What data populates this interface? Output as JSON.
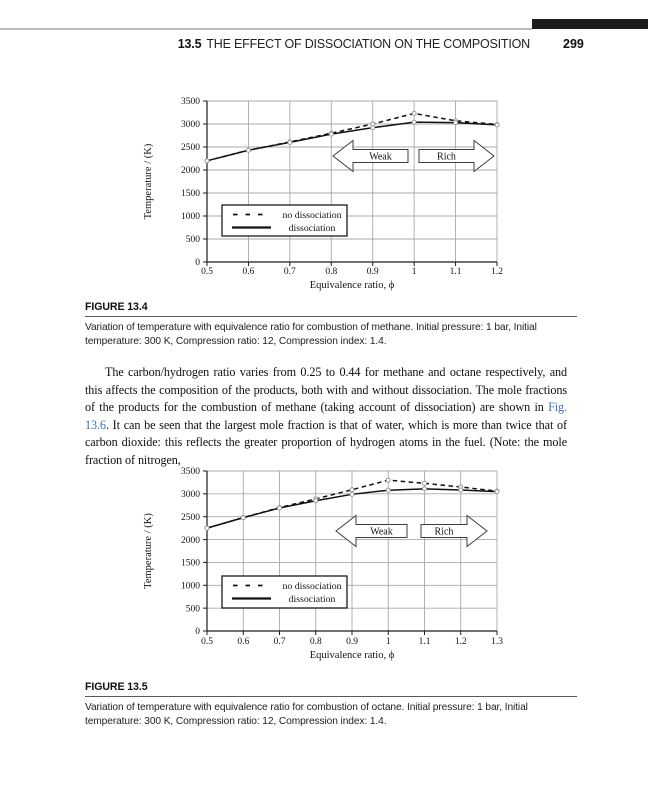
{
  "running_head": {
    "section_number": "13.5",
    "title": "THE EFFECT OF DISSOCIATION ON THE COMPOSITION",
    "page_number": "299"
  },
  "figures": [
    {
      "label": "FIGURE 13.4",
      "caption": "Variation of temperature with equivalence ratio for combustion of methane. Initial pressure: 1 bar, Initial temperature: 300 K, Compression ratio: 12, Compression index: 1.4."
    },
    {
      "label": "FIGURE 13.5",
      "caption": "Variation of temperature with equivalence ratio for combustion of octane. Initial pressure: 1 bar, Initial temperature: 300 K, Compression ratio: 12, Compression index: 1.4."
    }
  ],
  "body": {
    "before_link": "The carbon/hydrogen ratio varies from 0.25 to 0.44 for methane and octane respectively, and this affects the composition of the products, both with and without dissociation. The mole fractions of the products for the combustion of methane (taking account of dissociation) are shown in ",
    "link_text": "Fig. 13.6",
    "after_link": ". It can be seen that the largest mole fraction is that of water, which is more than twice that of carbon dioxide: this reflects the greater proportion of hydrogen atoms in the fuel. (Note: the mole fraction of nitrogen,"
  },
  "chart_data": [
    {
      "type": "line",
      "title": "",
      "xlabel": "Equivalence ratio, ϕ",
      "ylabel": "Temperature / (K)",
      "xlim": [
        0.5,
        1.2
      ],
      "ylim": [
        0,
        3500
      ],
      "xtick_step": 0.1,
      "ytick_step": 500,
      "xtick_labels": [
        "0.5",
        "0.6",
        "0.7",
        "0.8",
        "0.9",
        "1",
        "1.1",
        "1.2"
      ],
      "grid": true,
      "legend_position": "inside-lower-left",
      "x": [
        0.5,
        0.6,
        0.7,
        0.8,
        0.9,
        1.0,
        1.1,
        1.2
      ],
      "series": [
        {
          "name": "no dissociation",
          "style": "dashed",
          "values": [
            2200,
            2430,
            2610,
            2800,
            3000,
            3230,
            3070,
            2990
          ]
        },
        {
          "name": "dissociation",
          "style": "solid",
          "values": [
            2200,
            2430,
            2600,
            2780,
            2920,
            3040,
            3030,
            2980
          ]
        }
      ],
      "annotations": [
        {
          "label": "Weak",
          "direction": "left"
        },
        {
          "label": "Rich",
          "direction": "right"
        }
      ]
    },
    {
      "type": "line",
      "title": "",
      "xlabel": "Equivalence ratio, ϕ",
      "ylabel": "Temperature / (K)",
      "xlim": [
        0.5,
        1.3
      ],
      "ylim": [
        0,
        3500
      ],
      "xtick_step": 0.1,
      "ytick_step": 500,
      "xtick_labels": [
        "0.5",
        "0.6",
        "0.7",
        "0.8",
        "0.9",
        "1",
        "1.1",
        "1.2",
        "1.3"
      ],
      "grid": true,
      "legend_position": "inside-lower-left",
      "x": [
        0.5,
        0.6,
        0.7,
        0.8,
        0.9,
        1.0,
        1.1,
        1.2,
        1.3
      ],
      "series": [
        {
          "name": "no dissociation",
          "style": "dashed",
          "values": [
            2250,
            2480,
            2700,
            2890,
            3090,
            3300,
            3230,
            3150,
            3060
          ]
        },
        {
          "name": "dissociation",
          "style": "solid",
          "values": [
            2250,
            2480,
            2690,
            2850,
            2990,
            3080,
            3110,
            3085,
            3050
          ]
        }
      ],
      "annotations": [
        {
          "label": "Weak",
          "direction": "left"
        },
        {
          "label": "Rich",
          "direction": "right"
        }
      ]
    }
  ],
  "colors": {
    "link_blue": "#3b74b6",
    "tab_black": "#1c1c1c",
    "rule_gray": "#bcbcbc",
    "gridline_gray": "#a9a9a9"
  }
}
